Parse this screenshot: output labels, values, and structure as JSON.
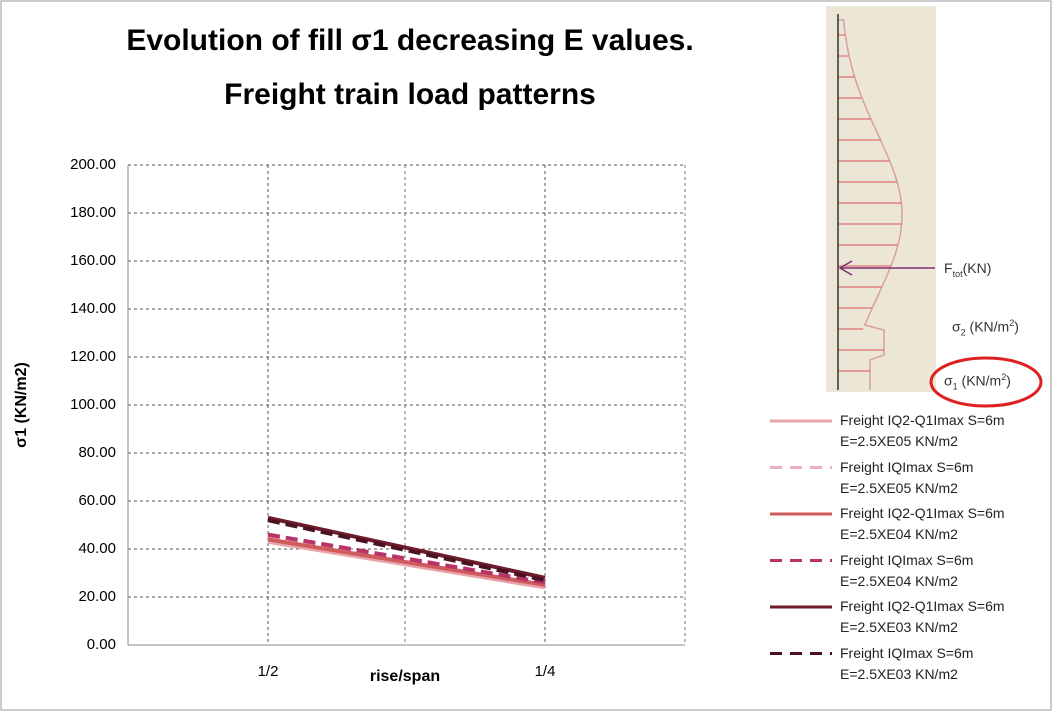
{
  "chart_data": {
    "type": "line",
    "title_lines": [
      "Evolution of fill σ1 decreasing E values.",
      "Freight train load patterns"
    ],
    "x_label": "rise/span",
    "y_label": "σ1 (KN/m2)",
    "categories": [
      "1/2",
      "1/4"
    ],
    "ylim": [
      0,
      200
    ],
    "yticks": [
      {
        "value": 0,
        "label": "0.00"
      },
      {
        "value": 20,
        "label": "20.00"
      },
      {
        "value": 40,
        "label": "40.00"
      },
      {
        "value": 60,
        "label": "60.00"
      },
      {
        "value": 80,
        "label": "80.00"
      },
      {
        "value": 100,
        "label": "100.00"
      },
      {
        "value": 120,
        "label": "120.00"
      },
      {
        "value": 140,
        "label": "140.00"
      },
      {
        "value": 160,
        "label": "160.00"
      },
      {
        "value": 180,
        "label": "180.00"
      },
      {
        "value": 200,
        "label": "200.00"
      }
    ],
    "grid": true,
    "series": [
      {
        "name": "Freight IQ2-Q1Imax S=6m E=2.5XE05 KN/m2",
        "color": "#e8a3ab",
        "dash": false,
        "values": [
          43,
          24
        ]
      },
      {
        "name": "Freight IQImax S=6m E=2.5XE05 KN/m2",
        "color": "#eab0bc",
        "dash": true,
        "values": [
          45,
          25
        ]
      },
      {
        "name": "Freight IQ2-Q1Imax S=6m E=2.5XE04 KN/m2",
        "color": "#cf5c5c",
        "dash": false,
        "values": [
          44,
          25
        ]
      },
      {
        "name": "Freight IQImax S=6m E=2.5XE04 KN/m2",
        "color": "#b8336a",
        "dash": true,
        "values": [
          46,
          26
        ]
      },
      {
        "name": "Freight IQ2-Q1Imax S=6m E=2.5XE03 KN/m2",
        "color": "#6e1c2c",
        "dash": false,
        "values": [
          53,
          28
        ]
      },
      {
        "name": "Freight IQImax S=6m E=2.5XE03 KN/m2",
        "color": "#4a1222",
        "dash": true,
        "values": [
          52,
          27
        ]
      }
    ],
    "annotations": [
      {
        "base": "F",
        "sub": "tot",
        "after": "(KN)"
      },
      {
        "base": "σ",
        "sub": "2",
        "after": " (KN/m",
        "sup": "2",
        "end": ")"
      },
      {
        "base": "σ",
        "sub": "1",
        "after": " (KN/m",
        "sup": "2",
        "end": ")"
      }
    ]
  }
}
